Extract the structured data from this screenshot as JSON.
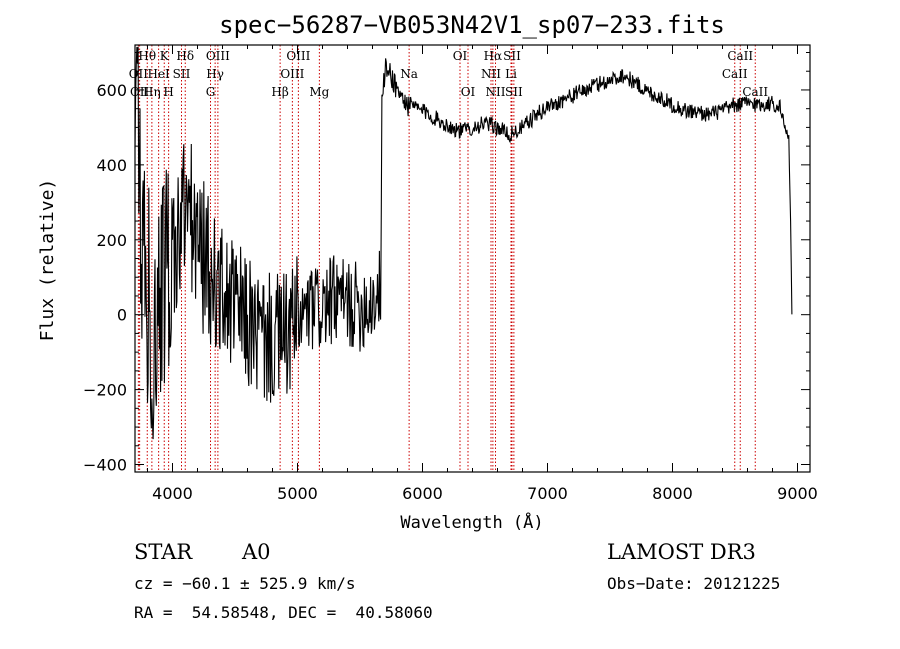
{
  "chart_data": {
    "type": "line",
    "title": "spec−56287−VB053N42V1_sp07−233.fits",
    "xlabel": "Wavelength (Å)",
    "ylabel": "Flux (relative)",
    "xlim": [
      3700,
      9100
    ],
    "ylim": [
      -420,
      720
    ],
    "x_ticks": [
      4000,
      5000,
      6000,
      7000,
      8000,
      9000
    ],
    "x_tick_labels": [
      "4000",
      "5000",
      "6000",
      "7000",
      "8000",
      "9000"
    ],
    "y_ticks": [
      -400,
      -200,
      0,
      200,
      400,
      600
    ],
    "y_tick_labels": [
      "−400",
      "−200",
      "0",
      "200",
      "400",
      "600"
    ],
    "grid": false,
    "line_color": "#000000",
    "marker_color": "#cc0000",
    "series": [
      {
        "name": "flux",
        "knots": [
          [
            3700,
            200
          ],
          [
            3720,
            580
          ],
          [
            3740,
            350
          ],
          [
            3760,
            100
          ],
          [
            3800,
            50
          ],
          [
            3850,
            -50
          ],
          [
            3900,
            100
          ],
          [
            3950,
            120
          ],
          [
            4000,
            150
          ],
          [
            4050,
            200
          ],
          [
            4100,
            300
          ],
          [
            4150,
            250
          ],
          [
            4200,
            180
          ],
          [
            4250,
            150
          ],
          [
            4300,
            100
          ],
          [
            4350,
            80
          ],
          [
            4400,
            50
          ],
          [
            4500,
            20
          ],
          [
            4600,
            -20
          ],
          [
            4700,
            -60
          ],
          [
            4800,
            -70
          ],
          [
            4900,
            -60
          ],
          [
            5000,
            -20
          ],
          [
            5100,
            10
          ],
          [
            5200,
            20
          ],
          [
            5300,
            40
          ],
          [
            5400,
            30
          ],
          [
            5500,
            20
          ],
          [
            5600,
            40
          ],
          [
            5665,
            60
          ],
          [
            5675,
            560
          ],
          [
            5700,
            655
          ],
          [
            5750,
            640
          ],
          [
            5800,
            600
          ],
          [
            5850,
            570
          ],
          [
            5900,
            560
          ],
          [
            6000,
            545
          ],
          [
            6100,
            525
          ],
          [
            6200,
            505
          ],
          [
            6300,
            490
          ],
          [
            6400,
            500
          ],
          [
            6500,
            510
          ],
          [
            6600,
            500
          ],
          [
            6700,
            480
          ],
          [
            6800,
            500
          ],
          [
            6900,
            530
          ],
          [
            7000,
            555
          ],
          [
            7100,
            570
          ],
          [
            7200,
            585
          ],
          [
            7300,
            600
          ],
          [
            7400,
            615
          ],
          [
            7500,
            625
          ],
          [
            7600,
            640
          ],
          [
            7700,
            620
          ],
          [
            7800,
            595
          ],
          [
            7900,
            580
          ],
          [
            8000,
            560
          ],
          [
            8100,
            545
          ],
          [
            8200,
            540
          ],
          [
            8300,
            535
          ],
          [
            8400,
            545
          ],
          [
            8500,
            560
          ],
          [
            8600,
            565
          ],
          [
            8700,
            560
          ],
          [
            8800,
            565
          ],
          [
            8860,
            555
          ],
          [
            8900,
            500
          ],
          [
            8930,
            470
          ],
          [
            8945,
            250
          ],
          [
            8955,
            0
          ]
        ]
      }
    ],
    "lines": [
      {
        "label": "Hθ",
        "x": 3798,
        "row": 0
      },
      {
        "label": "OII",
        "x": 3727,
        "row": 1
      },
      {
        "label": "OII",
        "x": 3737,
        "row": 2
      },
      {
        "label": "K",
        "x": 3934,
        "row": 0
      },
      {
        "label": "HeI",
        "x": 3889,
        "row": 1
      },
      {
        "label": "Hη",
        "x": 3835,
        "row": 2
      },
      {
        "label": "Hδ",
        "x": 4102,
        "row": 0
      },
      {
        "label": "SII",
        "x": 4072,
        "row": 1
      },
      {
        "label": "H",
        "x": 3969,
        "row": 2
      },
      {
        "label": "OIII",
        "x": 4363,
        "row": 0
      },
      {
        "label": "Hγ",
        "x": 4341,
        "row": 1
      },
      {
        "label": "G",
        "x": 4304,
        "row": 2
      },
      {
        "label": "OIII",
        "x": 5007,
        "row": 0
      },
      {
        "label": "OIII",
        "x": 4959,
        "row": 1
      },
      {
        "label": "Hβ",
        "x": 4861,
        "row": 2
      },
      {
        "label": "Mg",
        "x": 5175,
        "row": 2
      },
      {
        "label": "Na",
        "x": 5893,
        "row": 1
      },
      {
        "label": "OI",
        "x": 6300,
        "row": 0
      },
      {
        "label": "OI",
        "x": 6364,
        "row": 2
      },
      {
        "label": "Hα",
        "x": 6563,
        "row": 0
      },
      {
        "label": "NII",
        "x": 6548,
        "row": 1
      },
      {
        "label": "NII",
        "x": 6584,
        "row": 2
      },
      {
        "label": "SII",
        "x": 6716,
        "row": 0
      },
      {
        "label": "Li",
        "x": 6708,
        "row": 1
      },
      {
        "label": "SII",
        "x": 6731,
        "row": 2
      },
      {
        "label": "CaII",
        "x": 8542,
        "row": 0
      },
      {
        "label": "CaII",
        "x": 8498,
        "row": 1
      },
      {
        "label": "CaII",
        "x": 8662,
        "row": 2
      }
    ]
  },
  "info": {
    "object_class": "STAR",
    "subclass": "A0",
    "survey": "LAMOST DR3",
    "redshift_text": "cz = −60.1 ± 525.9 km/s",
    "obs_date_text": "Obs−Date: 20121225",
    "coords_text": "RA =  54.58548, DEC =  40.58060"
  }
}
